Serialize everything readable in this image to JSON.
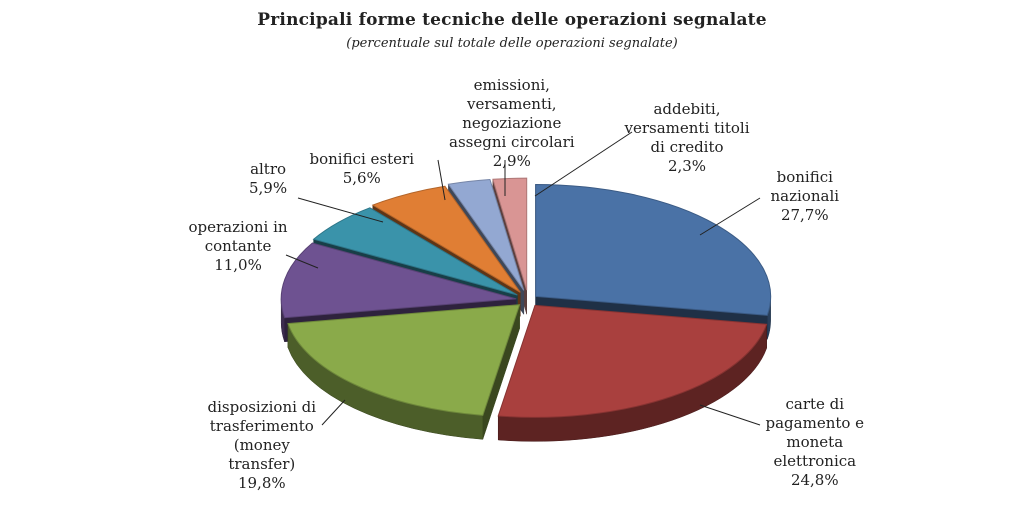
{
  "chart_data": {
    "type": "pie",
    "title": "Principali forme tecniche delle operazioni segnalate",
    "subtitle": "(percentuale sul totale delle operazioni segnalate)",
    "slices": [
      {
        "label": "bonifici nazionali",
        "label_lines": [
          "bonifici",
          "nazionali"
        ],
        "value": 27.7,
        "value_text": "27,7%",
        "color": "#4a72a6"
      },
      {
        "label": "carte di pagamento e moneta elettronica",
        "label_lines": [
          "carte di",
          "pagamento e",
          "moneta",
          "elettronica"
        ],
        "value": 24.8,
        "value_text": "24,8%",
        "color": "#a9403e"
      },
      {
        "label": "disposizioni di trasferimento (money transfer)",
        "label_lines": [
          "disposizioni di",
          "trasferimento",
          "(money",
          "transfer)"
        ],
        "value": 19.8,
        "value_text": "19,8%",
        "color": "#8aaa4a"
      },
      {
        "label": "operazioni in contante",
        "label_lines": [
          "operazioni in",
          "contante"
        ],
        "value": 11.0,
        "value_text": "11,0%",
        "color": "#6e5291"
      },
      {
        "label": "altro",
        "label_lines": [
          "altro"
        ],
        "value": 5.9,
        "value_text": "5,9%",
        "color": "#3a93aa"
      },
      {
        "label": "bonifici esteri",
        "label_lines": [
          "bonifici esteri"
        ],
        "value": 5.6,
        "value_text": "5,6%",
        "color": "#e07e34"
      },
      {
        "label": "emissioni, versamenti, negoziazione assegni circolari",
        "label_lines": [
          "emissioni,",
          "versamenti,",
          "negoziazione",
          "assegni circolari"
        ],
        "value": 2.9,
        "value_text": "2,9%",
        "color": "#93a8d2"
      },
      {
        "label": "addebiti, versamenti titoli di credito",
        "label_lines": [
          "addebiti,",
          "versamenti titoli",
          "di credito"
        ],
        "value": 2.3,
        "value_text": "2,3%",
        "color": "#d99594"
      }
    ],
    "style": "3d-exploded"
  }
}
